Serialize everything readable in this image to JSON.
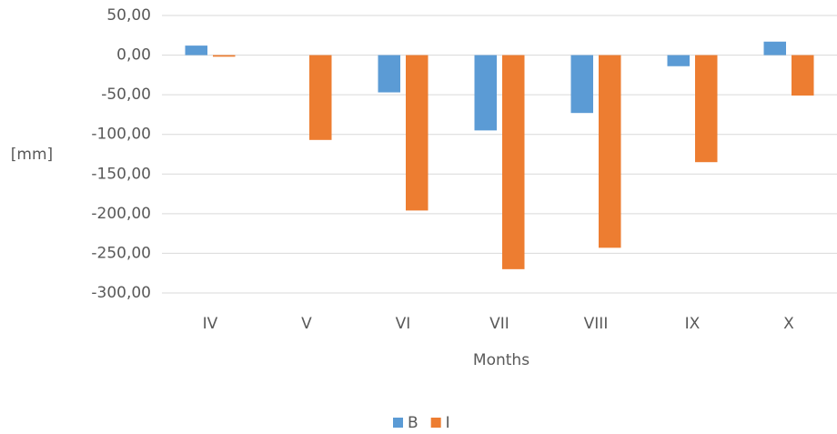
{
  "chart_data": {
    "type": "bar",
    "categories": [
      "IV",
      "V",
      "VI",
      "VII",
      "VIII",
      "IX",
      "X"
    ],
    "series": [
      {
        "name": "B",
        "color": "#5b9bd5",
        "values": [
          12,
          0,
          -47,
          -95,
          -73,
          -14,
          17
        ]
      },
      {
        "name": "I",
        "color": "#ed7d31",
        "values": [
          -2,
          -107,
          -196,
          -270,
          -243,
          -135,
          -51
        ]
      }
    ],
    "ylim": [
      -300,
      50
    ],
    "yticks": [
      {
        "value": 50,
        "label": "50,00"
      },
      {
        "value": 0,
        "label": "0,00"
      },
      {
        "value": -50,
        "label": "-50,00"
      },
      {
        "value": -100,
        "label": "-100,00"
      },
      {
        "value": -150,
        "label": "-150,00"
      },
      {
        "value": -200,
        "label": "-200,00"
      },
      {
        "value": -250,
        "label": "-250,00"
      },
      {
        "value": -300,
        "label": "-300,00"
      }
    ],
    "ylabel": "[mm]",
    "xlabel": "Months",
    "grid": true,
    "legend": "bottom"
  }
}
